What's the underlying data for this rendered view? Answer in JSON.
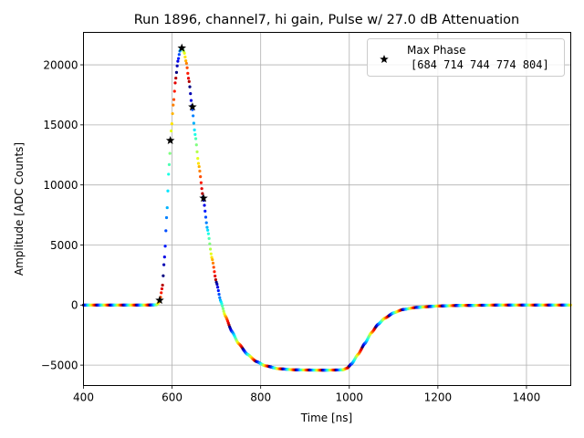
{
  "chart_data": {
    "type": "scatter",
    "title": "Run 1896, channel7, hi gain, Pulse w/ 27.0 dB Attenuation",
    "xlabel": "Time [ns]",
    "ylabel": "Amplitude [ADC Counts]",
    "xlim": [
      400,
      1500
    ],
    "ylim": [
      -6700,
      22700
    ],
    "xticks": [
      400,
      600,
      800,
      1000,
      1200,
      1400
    ],
    "yticks": [
      -5000,
      0,
      5000,
      10000,
      15000,
      20000
    ],
    "grid": true,
    "legend_position": "top-right",
    "colormap": "jet",
    "series": [
      {
        "kind": "waveform",
        "points": [
          [
            400,
            0
          ],
          [
            540,
            0
          ],
          [
            565,
            20
          ],
          [
            572,
            300
          ],
          [
            578,
            1500
          ],
          [
            583,
            4000
          ],
          [
            588,
            7500
          ],
          [
            593,
            11500
          ],
          [
            598,
            14500
          ],
          [
            603,
            16800
          ],
          [
            608,
            18800
          ],
          [
            613,
            20300
          ],
          [
            618,
            21200
          ],
          [
            622,
            21400
          ],
          [
            627,
            21100
          ],
          [
            632,
            20200
          ],
          [
            638,
            18700
          ],
          [
            645,
            16500
          ],
          [
            652,
            14200
          ],
          [
            660,
            11700
          ],
          [
            670,
            9000
          ],
          [
            680,
            6300
          ],
          [
            690,
            3900
          ],
          [
            700,
            1900
          ],
          [
            710,
            300
          ],
          [
            720,
            -900
          ],
          [
            735,
            -2200
          ],
          [
            750,
            -3200
          ],
          [
            770,
            -4100
          ],
          [
            790,
            -4700
          ],
          [
            810,
            -5050
          ],
          [
            840,
            -5300
          ],
          [
            880,
            -5400
          ],
          [
            940,
            -5420
          ],
          [
            985,
            -5400
          ],
          [
            995,
            -5250
          ],
          [
            1005,
            -4900
          ],
          [
            1020,
            -4100
          ],
          [
            1035,
            -3200
          ],
          [
            1050,
            -2300
          ],
          [
            1065,
            -1600
          ],
          [
            1080,
            -1100
          ],
          [
            1100,
            -650
          ],
          [
            1120,
            -380
          ],
          [
            1150,
            -200
          ],
          [
            1200,
            -80
          ],
          [
            1250,
            -30
          ],
          [
            1350,
            0
          ],
          [
            1500,
            0
          ]
        ]
      },
      {
        "name": "Max Phase\n [684 714 744 774 804]",
        "kind": "markers",
        "marker": "star",
        "points": [
          [
            572,
            400
          ],
          [
            596,
            13700
          ],
          [
            622,
            21400
          ],
          [
            646,
            16500
          ],
          [
            671,
            8900
          ]
        ]
      }
    ]
  },
  "legend": {
    "title": "Max Phase",
    "values": "[684 714 744 774 804]"
  }
}
